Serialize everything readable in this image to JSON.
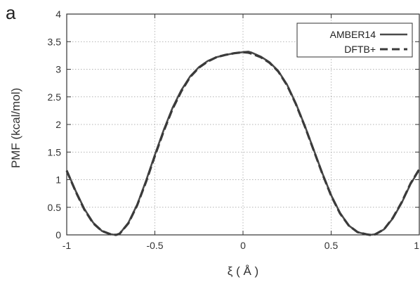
{
  "panel_label": "a",
  "chart_data": {
    "type": "line",
    "xlabel": "ξ ( Å )",
    "ylabel": "PMF (kcal/mol)",
    "xlim": [
      -1,
      1
    ],
    "ylim": [
      0,
      4
    ],
    "x_ticks": [
      -1,
      -0.5,
      0,
      0.5,
      1
    ],
    "y_ticks": [
      0,
      0.5,
      1,
      1.5,
      2,
      2.5,
      3,
      3.5,
      4
    ],
    "x_tick_labels": [
      "-1",
      "-0.5",
      "0",
      "0.5",
      "1"
    ],
    "y_tick_labels": [
      "0",
      "0.5",
      "1",
      "1.5",
      "2",
      "2.5",
      "3",
      "3.5",
      "4"
    ],
    "grid": true,
    "legend_position": "top-right",
    "series": [
      {
        "name": "AMBER14",
        "style": "solid",
        "color": "#4a4a4a",
        "x": [
          -1.0,
          -0.95,
          -0.9,
          -0.85,
          -0.8,
          -0.75,
          -0.72,
          -0.7,
          -0.65,
          -0.6,
          -0.55,
          -0.5,
          -0.45,
          -0.4,
          -0.35,
          -0.3,
          -0.25,
          -0.2,
          -0.15,
          -0.1,
          -0.05,
          0.0,
          0.03,
          0.05,
          0.1,
          0.15,
          0.2,
          0.25,
          0.3,
          0.35,
          0.4,
          0.45,
          0.5,
          0.55,
          0.6,
          0.65,
          0.7,
          0.72,
          0.75,
          0.8,
          0.85,
          0.9,
          0.95,
          1.0
        ],
        "y": [
          1.17,
          0.8,
          0.47,
          0.22,
          0.07,
          0.01,
          0.0,
          0.02,
          0.22,
          0.55,
          0.98,
          1.45,
          1.9,
          2.3,
          2.62,
          2.87,
          3.04,
          3.15,
          3.22,
          3.26,
          3.29,
          3.31,
          3.32,
          3.3,
          3.23,
          3.13,
          2.97,
          2.72,
          2.38,
          1.98,
          1.55,
          1.12,
          0.72,
          0.4,
          0.17,
          0.05,
          0.01,
          0.0,
          0.01,
          0.1,
          0.3,
          0.58,
          0.92,
          1.18
        ]
      },
      {
        "name": "DFTB+",
        "style": "dashed",
        "color": "#3a3a3a",
        "x": [
          -1.0,
          -0.95,
          -0.9,
          -0.85,
          -0.8,
          -0.75,
          -0.72,
          -0.7,
          -0.65,
          -0.6,
          -0.55,
          -0.5,
          -0.45,
          -0.4,
          -0.35,
          -0.3,
          -0.25,
          -0.2,
          -0.15,
          -0.1,
          -0.05,
          0.0,
          0.03,
          0.05,
          0.1,
          0.15,
          0.2,
          0.25,
          0.3,
          0.35,
          0.4,
          0.45,
          0.5,
          0.55,
          0.6,
          0.65,
          0.7,
          0.72,
          0.75,
          0.8,
          0.85,
          0.9,
          0.95,
          1.0
        ],
        "y": [
          1.16,
          0.79,
          0.46,
          0.21,
          0.07,
          0.01,
          0.0,
          0.02,
          0.21,
          0.54,
          0.96,
          1.43,
          1.88,
          2.28,
          2.6,
          2.86,
          3.03,
          3.14,
          3.22,
          3.26,
          3.29,
          3.31,
          3.3,
          3.28,
          3.22,
          3.12,
          2.96,
          2.71,
          2.37,
          1.97,
          1.54,
          1.11,
          0.71,
          0.39,
          0.17,
          0.05,
          0.01,
          0.0,
          0.01,
          0.1,
          0.31,
          0.59,
          0.93,
          1.19
        ]
      }
    ]
  }
}
